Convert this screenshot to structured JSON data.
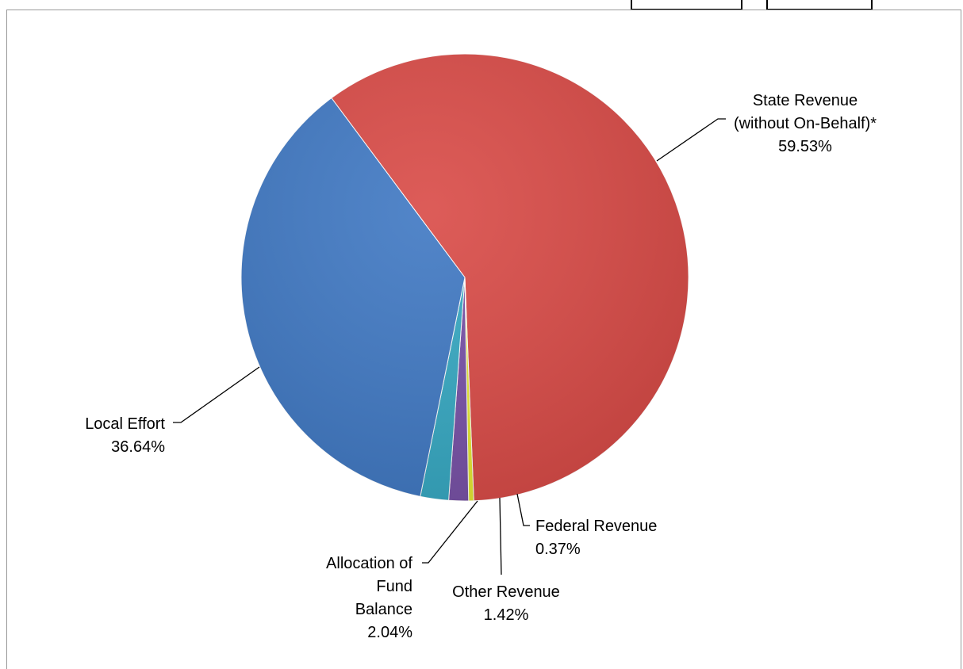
{
  "colors": {
    "state": "#d94a46",
    "local": "#3f78c3",
    "fund": "#35a8c2",
    "other": "#7750a6",
    "federal": "#e5e832",
    "leader": "#000000"
  },
  "chart_data": {
    "type": "pie",
    "title": "",
    "slices": [
      {
        "label": [
          "State Revenue",
          "(without On-Behalf)*"
        ],
        "value": 59.53,
        "value_label": "59.53%",
        "color_key": "state"
      },
      {
        "label": [
          "Federal Revenue"
        ],
        "value": 0.37,
        "value_label": "0.37%",
        "color_key": "federal"
      },
      {
        "label": [
          "Other Revenue"
        ],
        "value": 1.42,
        "value_label": "1.42%",
        "color_key": "other"
      },
      {
        "label": [
          "Allocation of",
          "Fund",
          "Balance"
        ],
        "value": 2.04,
        "value_label": "2.04%",
        "color_key": "fund"
      },
      {
        "label": [
          "Local Effort"
        ],
        "value": 36.64,
        "value_label": "36.64%",
        "color_key": "local"
      }
    ]
  }
}
